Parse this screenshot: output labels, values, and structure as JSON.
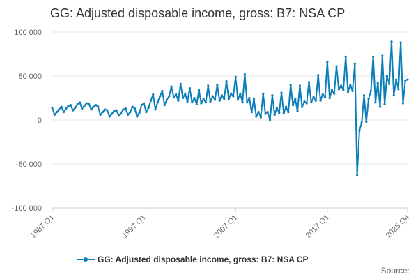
{
  "chart_data": {
    "type": "line",
    "title": "GG: Adjusted disposable income, gross: B7: NSA CP",
    "xlabel": "",
    "ylabel": "",
    "ylim": [
      -100000,
      100000
    ],
    "yticks": [
      100000,
      50000,
      0,
      -50000,
      -100000
    ],
    "ytick_labels": [
      "100 000",
      "50 000",
      "0",
      "-50 000",
      "-100 000"
    ],
    "xticks": [
      "1987 Q1",
      "1997 Q1",
      "2007 Q1",
      "2017 Q1",
      "2025 Q4"
    ],
    "start": "1987 Q1",
    "end": "2025 Q4",
    "legend_position": "bottom",
    "grid": true,
    "series": [
      {
        "name": "GG: Adjusted disposable income, gross: B7: NSA CP",
        "color": "#0b7db8",
        "values": [
          14000,
          6000,
          9000,
          12000,
          15000,
          9000,
          13000,
          16000,
          17000,
          11000,
          14000,
          18000,
          20000,
          13000,
          16000,
          19000,
          18000,
          12000,
          15000,
          17000,
          15000,
          6000,
          9000,
          12000,
          11000,
          4000,
          7000,
          10000,
          11000,
          5000,
          8000,
          12000,
          13000,
          6000,
          9000,
          15000,
          13000,
          4000,
          8000,
          17000,
          19000,
          9000,
          14000,
          22000,
          29000,
          12000,
          20000,
          27000,
          33000,
          17000,
          23000,
          27000,
          38000,
          26000,
          29000,
          22000,
          41000,
          25000,
          30000,
          21000,
          36000,
          20000,
          25000,
          18000,
          34000,
          19000,
          24000,
          20000,
          39000,
          21000,
          27000,
          23000,
          40000,
          22000,
          28000,
          24000,
          44000,
          24000,
          30000,
          27000,
          49000,
          23000,
          30000,
          20000,
          52000,
          20000,
          25000,
          9000,
          24000,
          4000,
          9000,
          3000,
          30000,
          7000,
          9000,
          0,
          28000,
          6000,
          14000,
          8000,
          31000,
          8000,
          15000,
          9000,
          40000,
          17000,
          24000,
          10000,
          39000,
          15000,
          21000,
          19000,
          43000,
          20000,
          26000,
          22000,
          51000,
          22000,
          29000,
          26000,
          66000,
          25000,
          34000,
          30000,
          61000,
          35000,
          39000,
          34000,
          72000,
          32000,
          40000,
          33000,
          64000,
          -63000,
          -12000,
          -3000,
          28000,
          -2000,
          24000,
          33000,
          72000,
          20000,
          42000,
          15000,
          73000,
          18000,
          50000,
          41000,
          89000,
          28000,
          46000,
          35000,
          88000,
          19000,
          45000,
          46000
        ]
      }
    ]
  },
  "source_label": "Source:"
}
